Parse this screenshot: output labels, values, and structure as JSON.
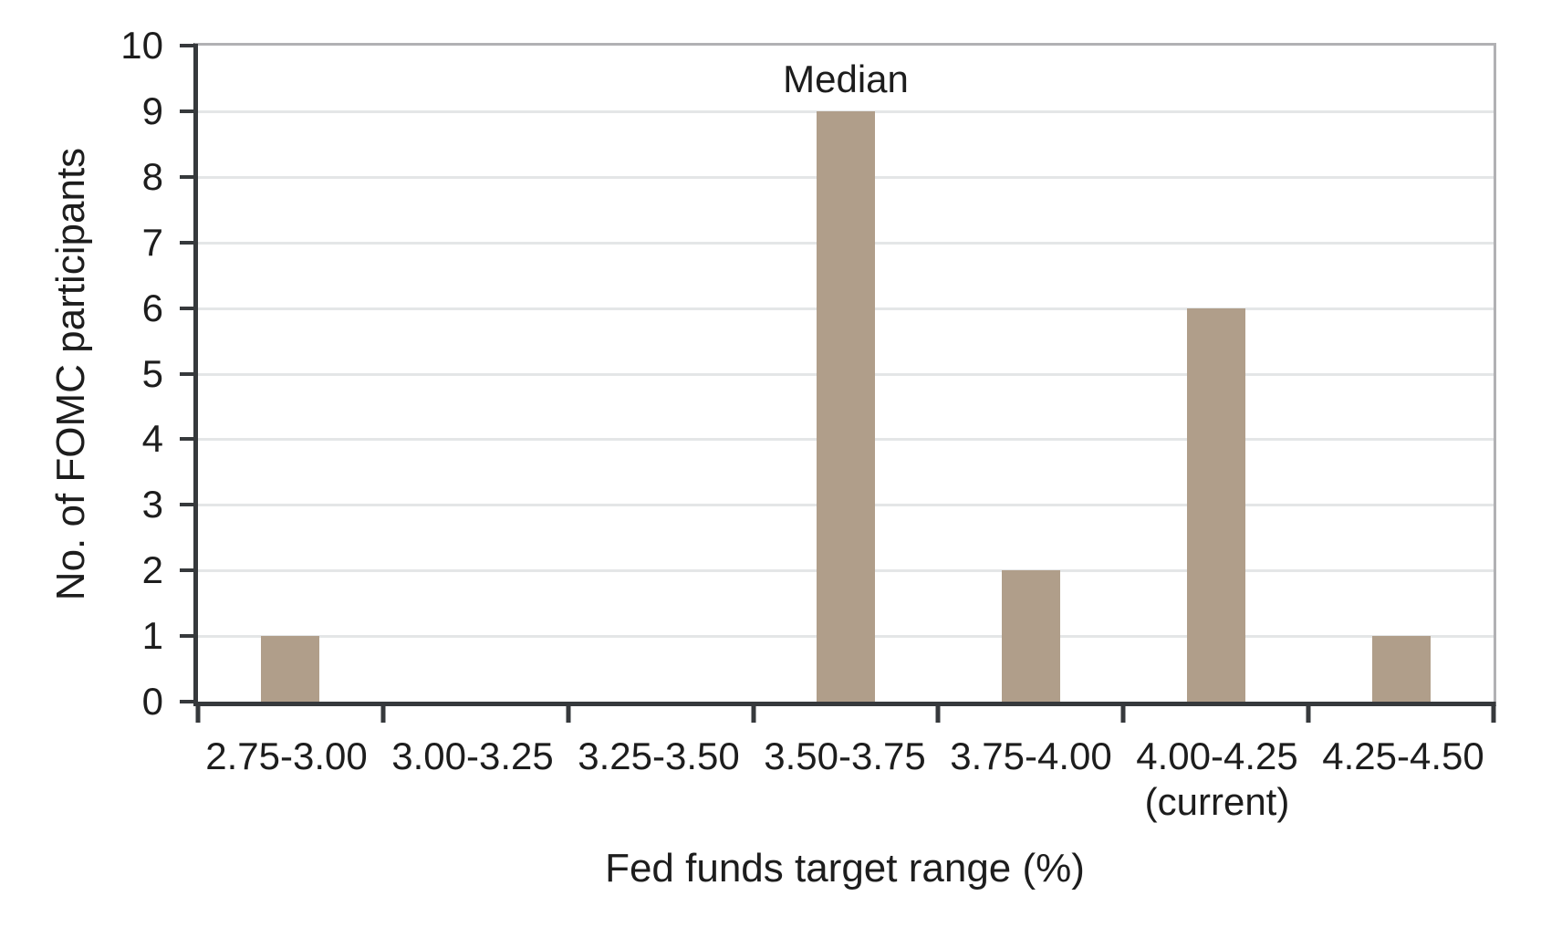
{
  "chart_data": {
    "type": "bar",
    "categories": [
      "2.75-3.00",
      "3.00-3.25",
      "3.25-3.50",
      "3.50-3.75",
      "3.75-4.00",
      "4.00-4.25",
      "4.25-4.50"
    ],
    "category_sublabels": [
      "",
      "",
      "",
      "",
      "",
      "(current)",
      ""
    ],
    "values": [
      1,
      0,
      0,
      9,
      2,
      6,
      1
    ],
    "title": "",
    "xlabel": "Fed funds target range (%)",
    "ylabel": "No. of FOMC participants",
    "ylim": [
      0,
      10
    ],
    "ytick_step": 1,
    "annotation": {
      "text": "Median",
      "category_index": 3
    },
    "legend": "none",
    "grid": true,
    "colors": {
      "bar": "#b09e8a",
      "axis": "#36393c",
      "outer_border": "#b1b1b4",
      "gridline": "#e4e6e7",
      "text": "#1d1d1d"
    }
  }
}
